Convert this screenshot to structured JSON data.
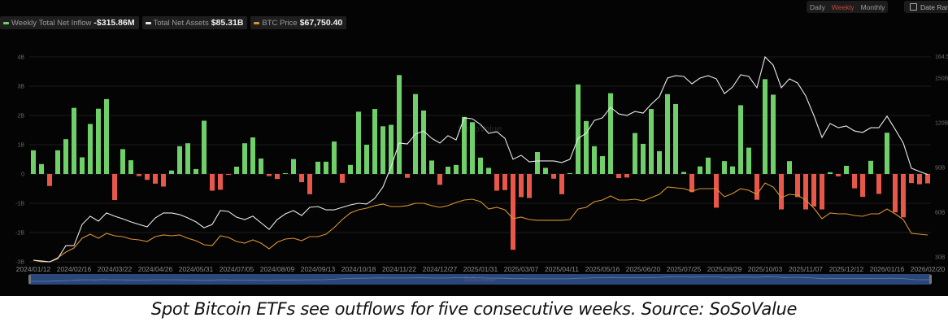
{
  "legend": {
    "inflow_label": "Weekly Total Net Inflow",
    "inflow_value": "-$315.86M",
    "assets_label": "Total Net Assets",
    "assets_value": "$85.31B",
    "price_label": "BTC Price",
    "price_value": "$67,750.40"
  },
  "controls": {
    "daily": "Daily",
    "weekly": "Weekly",
    "monthly": "Monthly",
    "date_range": "Date Range",
    "active": "Weekly"
  },
  "watermark": "SoSoValue",
  "caption": "Spot Bitcoin ETFs see outflows for five consecutive weeks. Source: SoSoValue",
  "colors": {
    "inflow_pos": "#6fd06a",
    "inflow_neg": "#e8574a",
    "assets": "#e8e8e8",
    "price": "#d9932e",
    "navigator": "#2b4678"
  },
  "chart_data": {
    "type": "bar",
    "title": "",
    "xlabel": "",
    "ylabel": "",
    "x_start": "2024/01/12",
    "interval": "weekly",
    "x_tick_labels": [
      "2024/01/12",
      "2024/02/16",
      "2024/03/22",
      "2024/04/26",
      "2024/05/31",
      "2024/07/05",
      "2024/08/09",
      "2024/09/13",
      "2024/10/18",
      "2024/11/22",
      "2024/12/27",
      "2025/01/31",
      "2025/03/07",
      "2025/04/11",
      "2025/05/16",
      "2025/06/20",
      "2025/07/25",
      "2025/08/29",
      "2025/10/03",
      "2025/11/07",
      "2025/12/12",
      "2026/01/16",
      "2026/02/20"
    ],
    "left_axis": {
      "ticks": [
        4,
        3,
        2,
        1,
        0,
        -1,
        -2,
        -3
      ],
      "tick_labels": [
        "4B",
        "3B",
        "2B",
        "1B",
        "0",
        "-1B",
        "-2B",
        "-3B"
      ],
      "ylim": [
        -3,
        4
      ],
      "unit": "B USD"
    },
    "right_axis": {
      "ticks": [
        164.5,
        150,
        120,
        90,
        60,
        30
      ],
      "tick_labels": [
        "164.5B",
        "150B",
        "120B",
        "90B",
        "60B",
        "30B"
      ],
      "ylim": [
        27.3,
        164.5
      ],
      "unit": "B USD"
    },
    "grid": true,
    "legend_position": "top-left",
    "series": [
      {
        "name": "Weekly Total Net Inflow",
        "type": "bar",
        "axis": "left",
        "unit": "B USD",
        "values": [
          0.81,
          0.34,
          -0.41,
          0.81,
          1.19,
          2.26,
          0.57,
          1.71,
          2.23,
          2.56,
          -0.89,
          0.85,
          0.47,
          -0.07,
          -0.2,
          -0.33,
          -0.43,
          0.12,
          0.95,
          1.05,
          0.17,
          1.82,
          -0.57,
          -0.54,
          -0.03,
          0.25,
          1.05,
          1.25,
          0.53,
          -0.07,
          -0.17,
          0.03,
          0.51,
          -0.28,
          -0.69,
          0.42,
          0.42,
          1.11,
          -0.3,
          0.31,
          2.13,
          1.0,
          2.22,
          1.63,
          1.68,
          3.38,
          -0.13,
          2.73,
          2.17,
          0.46,
          -0.37,
          0.25,
          0.31,
          1.95,
          1.77,
          0.56,
          0.21,
          -0.57,
          -0.55,
          -2.59,
          -0.79,
          -0.82,
          0.75,
          0.21,
          -0.16,
          -0.69,
          0.03,
          3.06,
          1.81,
          0.95,
          0.61,
          2.76,
          -0.14,
          -0.12,
          1.4,
          1.03,
          2.22,
          0.78,
          2.73,
          2.39,
          0.07,
          -0.62,
          0.26,
          0.56,
          -1.15,
          0.44,
          0.26,
          2.35,
          0.9,
          -0.88,
          3.24,
          2.71,
          -1.21,
          0.44,
          -0.79,
          -1.21,
          -1.11,
          -1.21,
          0.06,
          -0.08,
          0.28,
          -0.49,
          -0.78,
          0.45,
          -0.68,
          1.41,
          -1.31,
          -1.48,
          -0.31,
          -0.35,
          -0.32
        ]
      },
      {
        "name": "Total Net Assets",
        "type": "line",
        "axis": "right",
        "unit": "B USD",
        "values": [
          27.8,
          27.3,
          26.7,
          28.9,
          37.6,
          37.6,
          51.8,
          57.3,
          54.0,
          59.5,
          57.3,
          55.6,
          53.5,
          51.8,
          50.2,
          56.2,
          59.5,
          59.5,
          58.4,
          56.2,
          53.5,
          49.6,
          51.8,
          61.1,
          60.5,
          56.7,
          55.1,
          57.3,
          52.9,
          48.5,
          55.1,
          58.9,
          61.1,
          57.8,
          63.3,
          63.8,
          61.6,
          61.6,
          63.3,
          64.9,
          66.0,
          65.5,
          69.3,
          76.9,
          90.5,
          106.4,
          105.8,
          112.4,
          114.5,
          109.6,
          106.4,
          111.3,
          108.5,
          123.3,
          122.7,
          118.9,
          112.9,
          114.0,
          109.6,
          95.5,
          98.2,
          93.8,
          94.4,
          94.4,
          94.4,
          93.3,
          95.5,
          109.6,
          112.9,
          121.6,
          123.3,
          130.4,
          126.0,
          124.9,
          127.6,
          126.5,
          132.5,
          137.5,
          150.0,
          151.6,
          151.1,
          146.2,
          150.0,
          151.6,
          149.5,
          139.6,
          144.0,
          152.2,
          151.1,
          143.5,
          164.2,
          158.7,
          143.5,
          149.5,
          146.7,
          138.0,
          124.9,
          110.2,
          119.5,
          116.7,
          117.8,
          114.5,
          113.5,
          116.7,
          116.7,
          124.4,
          115.6,
          106.4,
          89.5,
          87.3,
          85.31
        ]
      },
      {
        "name": "BTC Price",
        "type": "line",
        "axis": "hidden",
        "unit": "USD",
        "values": [
          40200,
          38400,
          38400,
          42900,
          49100,
          53500,
          64200,
          68600,
          64200,
          69500,
          66900,
          66000,
          63300,
          62400,
          60600,
          66000,
          67800,
          66900,
          67800,
          64200,
          61500,
          57100,
          56200,
          66900,
          65100,
          60600,
          58900,
          62400,
          58900,
          52600,
          59800,
          63300,
          64200,
          61500,
          66000,
          66000,
          68600,
          75800,
          84600,
          91800,
          95300,
          97100,
          99800,
          101500,
          98900,
          98900,
          99800,
          102400,
          102400,
          99800,
          98000,
          99800,
          103300,
          106000,
          106900,
          104200,
          96200,
          98000,
          95300,
          85500,
          87300,
          84600,
          83800,
          83800,
          83800,
          83800,
          84600,
          96200,
          98000,
          104200,
          106000,
          110400,
          106000,
          106000,
          106900,
          105100,
          108600,
          112200,
          120200,
          119300,
          118400,
          115800,
          118400,
          118400,
          118400,
          109500,
          113100,
          118400,
          116600,
          112200,
          124600,
          120200,
          108600,
          112200,
          111300,
          106000,
          97100,
          85500,
          91800,
          90900,
          90900,
          89100,
          88200,
          90900,
          90900,
          96200,
          90900,
          84600,
          69500,
          68600,
          67750
        ]
      }
    ]
  }
}
